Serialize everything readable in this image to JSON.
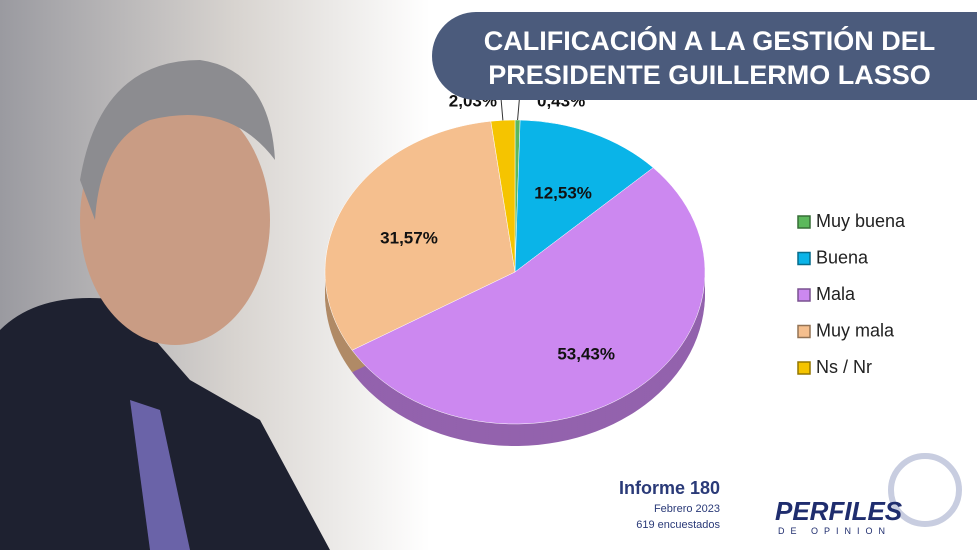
{
  "chart_data": {
    "type": "pie",
    "title": "CALIFICACIÓN A LA GESTIÓN DEL PRESIDENTE GUILLERMO LASSO",
    "categories": [
      "Muy buena",
      "Buena",
      "Mala",
      "Muy mala",
      "Ns / Nr"
    ],
    "values": [
      0.43,
      12.53,
      53.43,
      31.57,
      2.03
    ],
    "value_labels": [
      "0,43%",
      "12,53%",
      "53,43%",
      "31,57%",
      "2,03%"
    ],
    "colors": [
      "#5cb85c",
      "#0ab4e8",
      "#cc88f0",
      "#f5bf8e",
      "#f5c400"
    ],
    "legend": "right"
  },
  "footer": {
    "report": "Informe 180",
    "date": "Febrero 2023",
    "sample": "619 encuestados"
  },
  "logo": {
    "name": "PERFILES",
    "tagline": "DE OPINION"
  }
}
